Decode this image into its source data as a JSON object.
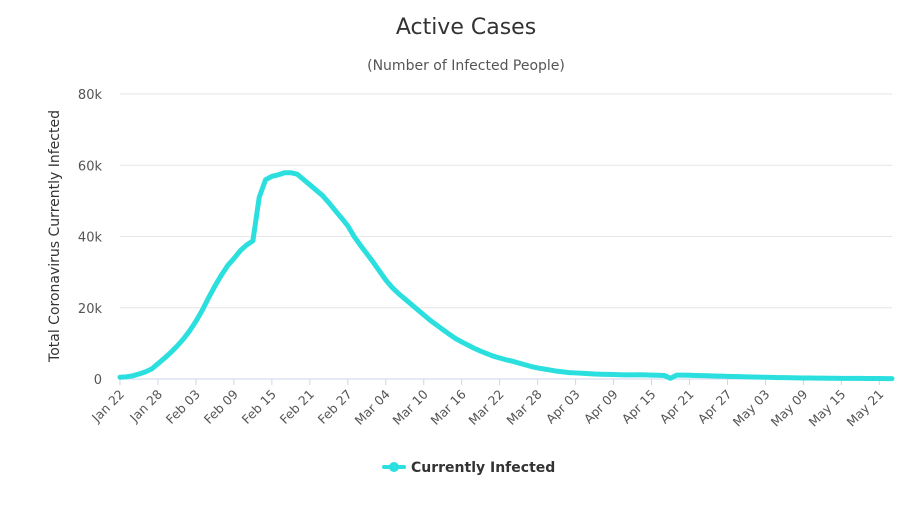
{
  "chart_data": {
    "type": "line",
    "title": "Active Cases",
    "subtitle": "(Number of Infected People)",
    "ylabel": "Total Coronavirus Currently Infected",
    "xlabel": "",
    "ylim": [
      0,
      80000
    ],
    "yticks": [
      {
        "value": 0,
        "label": "0"
      },
      {
        "value": 20000,
        "label": "20k"
      },
      {
        "value": 40000,
        "label": "40k"
      },
      {
        "value": 60000,
        "label": "60k"
      },
      {
        "value": 80000,
        "label": "80k"
      }
    ],
    "x_start": "Jan 22",
    "num_days": 123,
    "xticks": [
      {
        "day": 0,
        "label": "Jan 22"
      },
      {
        "day": 6,
        "label": "Jan 28"
      },
      {
        "day": 12,
        "label": "Feb 03"
      },
      {
        "day": 18,
        "label": "Feb 09"
      },
      {
        "day": 24,
        "label": "Feb 15"
      },
      {
        "day": 30,
        "label": "Feb 21"
      },
      {
        "day": 36,
        "label": "Feb 27"
      },
      {
        "day": 42,
        "label": "Mar 04"
      },
      {
        "day": 48,
        "label": "Mar 10"
      },
      {
        "day": 54,
        "label": "Mar 16"
      },
      {
        "day": 60,
        "label": "Mar 22"
      },
      {
        "day": 66,
        "label": "Mar 28"
      },
      {
        "day": 72,
        "label": "Apr 03"
      },
      {
        "day": 78,
        "label": "Apr 09"
      },
      {
        "day": 84,
        "label": "Apr 15"
      },
      {
        "day": 90,
        "label": "Apr 21"
      },
      {
        "day": 96,
        "label": "Apr 27"
      },
      {
        "day": 102,
        "label": "May 03"
      },
      {
        "day": 108,
        "label": "May 09"
      },
      {
        "day": 114,
        "label": "May 15"
      },
      {
        "day": 120,
        "label": "May 21"
      }
    ],
    "series": [
      {
        "name": "Currently Infected",
        "color": "#2bdfdf",
        "points": [
          [
            0,
            500
          ],
          [
            1,
            600
          ],
          [
            2,
            900
          ],
          [
            3,
            1400
          ],
          [
            4,
            2000
          ],
          [
            5,
            2800
          ],
          [
            6,
            4300
          ],
          [
            7,
            5800
          ],
          [
            8,
            7400
          ],
          [
            9,
            9200
          ],
          [
            10,
            11200
          ],
          [
            11,
            13500
          ],
          [
            12,
            16200
          ],
          [
            13,
            19300
          ],
          [
            14,
            22800
          ],
          [
            15,
            26100
          ],
          [
            16,
            29100
          ],
          [
            17,
            31800
          ],
          [
            18,
            33800
          ],
          [
            19,
            36000
          ],
          [
            20,
            37600
          ],
          [
            21,
            38800
          ],
          [
            22,
            51000
          ],
          [
            23,
            55900
          ],
          [
            24,
            56900
          ],
          [
            25,
            57300
          ],
          [
            26,
            57900
          ],
          [
            27,
            57900
          ],
          [
            28,
            57500
          ],
          [
            29,
            56000
          ],
          [
            30,
            54500
          ],
          [
            31,
            53000
          ],
          [
            32,
            51500
          ],
          [
            33,
            49500
          ],
          [
            34,
            47300
          ],
          [
            35,
            45200
          ],
          [
            36,
            43000
          ],
          [
            37,
            40000
          ],
          [
            38,
            37500
          ],
          [
            39,
            35200
          ],
          [
            40,
            32800
          ],
          [
            41,
            30300
          ],
          [
            42,
            27800
          ],
          [
            43,
            25700
          ],
          [
            44,
            24000
          ],
          [
            45,
            22500
          ],
          [
            46,
            21000
          ],
          [
            47,
            19500
          ],
          [
            48,
            18000
          ],
          [
            49,
            16500
          ],
          [
            50,
            15200
          ],
          [
            51,
            13900
          ],
          [
            52,
            12600
          ],
          [
            53,
            11400
          ],
          [
            54,
            10400
          ],
          [
            55,
            9500
          ],
          [
            56,
            8600
          ],
          [
            57,
            7800
          ],
          [
            58,
            7100
          ],
          [
            59,
            6400
          ],
          [
            60,
            5900
          ],
          [
            61,
            5400
          ],
          [
            62,
            5000
          ],
          [
            63,
            4500
          ],
          [
            64,
            4000
          ],
          [
            65,
            3500
          ],
          [
            66,
            3100
          ],
          [
            67,
            2800
          ],
          [
            68,
            2500
          ],
          [
            69,
            2200
          ],
          [
            70,
            2000
          ],
          [
            71,
            1800
          ],
          [
            72,
            1700
          ],
          [
            73,
            1600
          ],
          [
            74,
            1500
          ],
          [
            75,
            1400
          ],
          [
            76,
            1350
          ],
          [
            77,
            1300
          ],
          [
            78,
            1250
          ],
          [
            79,
            1200
          ],
          [
            80,
            1150
          ],
          [
            81,
            1150
          ],
          [
            82,
            1200
          ],
          [
            83,
            1150
          ],
          [
            84,
            1100
          ],
          [
            85,
            1050
          ],
          [
            86,
            1000
          ],
          [
            87,
            200
          ],
          [
            88,
            1100
          ],
          [
            89,
            1100
          ],
          [
            90,
            1050
          ],
          [
            91,
            1000
          ],
          [
            92,
            950
          ],
          [
            93,
            900
          ],
          [
            94,
            850
          ],
          [
            95,
            800
          ],
          [
            96,
            750
          ],
          [
            97,
            700
          ],
          [
            98,
            650
          ],
          [
            99,
            600
          ],
          [
            100,
            560
          ],
          [
            101,
            520
          ],
          [
            102,
            480
          ],
          [
            103,
            440
          ],
          [
            104,
            400
          ],
          [
            105,
            370
          ],
          [
            106,
            340
          ],
          [
            107,
            310
          ],
          [
            108,
            290
          ],
          [
            109,
            270
          ],
          [
            110,
            250
          ],
          [
            111,
            230
          ],
          [
            112,
            210
          ],
          [
            113,
            200
          ],
          [
            114,
            190
          ],
          [
            115,
            180
          ],
          [
            116,
            170
          ],
          [
            117,
            160
          ],
          [
            118,
            150
          ],
          [
            119,
            140
          ],
          [
            120,
            130
          ],
          [
            121,
            120
          ],
          [
            122,
            110
          ]
        ]
      }
    ],
    "legend_position": "bottom-center",
    "grid": true
  }
}
